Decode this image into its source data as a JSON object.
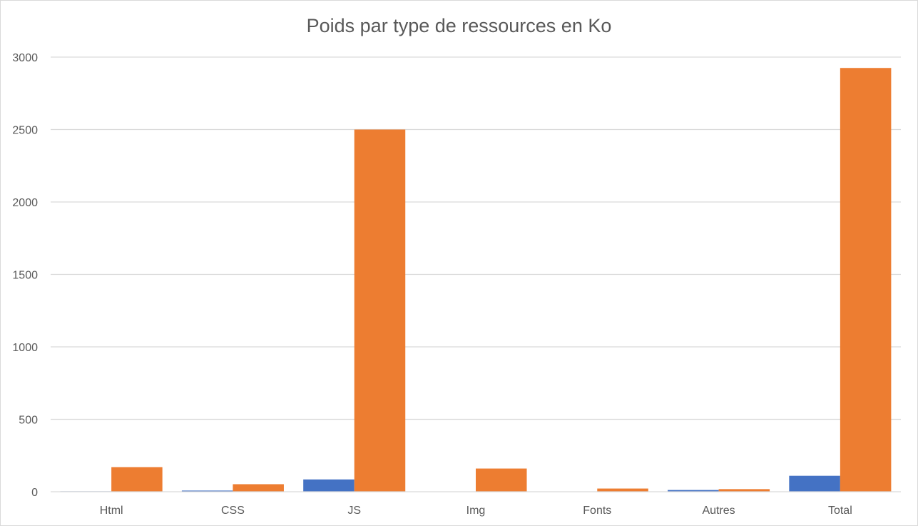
{
  "chart_data": {
    "type": "bar",
    "title": "Poids par type de ressources  en Ko",
    "xlabel": "",
    "ylabel": "",
    "categories": [
      "Html",
      "CSS",
      "JS",
      "Img",
      "Fonts",
      "Autres",
      "Total"
    ],
    "series": [
      {
        "color": "#4472c4",
        "values": [
          3,
          8,
          85,
          0,
          0,
          12,
          110
        ]
      },
      {
        "color": "#ed7d31",
        "values": [
          170,
          52,
          2500,
          160,
          22,
          18,
          2925
        ]
      }
    ],
    "ylim": [
      0,
      3000
    ],
    "yticks": [
      0,
      500,
      1000,
      1500,
      2000,
      2500,
      3000
    ],
    "grid": true,
    "legend": "none"
  }
}
